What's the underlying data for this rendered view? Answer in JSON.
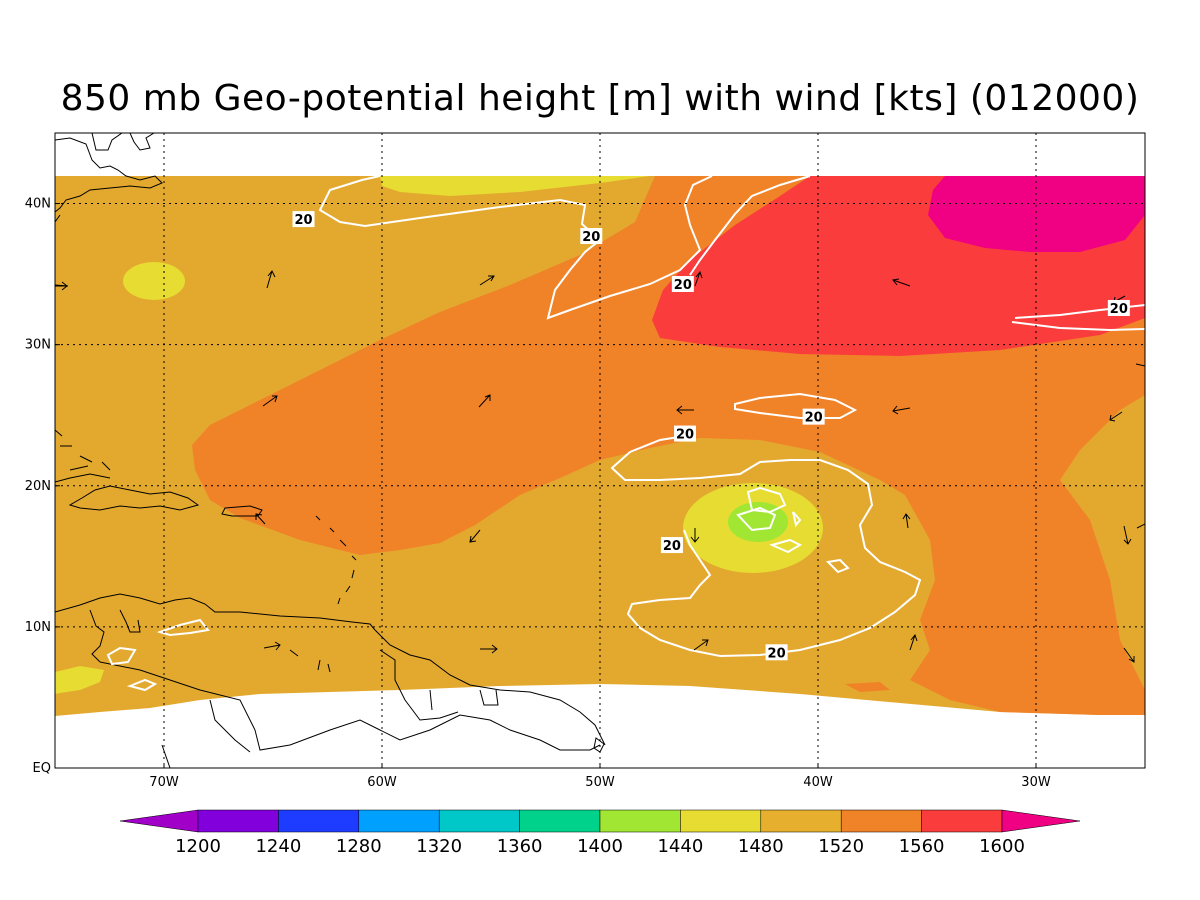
{
  "title": "850 mb Geo-potential height [m] with wind [kts] (012000)",
  "map": {
    "lon_range": [
      -75,
      -25
    ],
    "lat_range": [
      0,
      45
    ],
    "data_lat_max": 42,
    "lat_ticks": [
      {
        "value": 40,
        "label": "40N"
      },
      {
        "value": 30,
        "label": "30N"
      },
      {
        "value": 20,
        "label": "20N"
      },
      {
        "value": 10,
        "label": "10N"
      },
      {
        "value": 0,
        "label": "EQ"
      }
    ],
    "lon_ticks": [
      {
        "value": -70,
        "label": "70W"
      },
      {
        "value": -60,
        "label": "60W"
      },
      {
        "value": -50,
        "label": "50W"
      },
      {
        "value": -40,
        "label": "40W"
      },
      {
        "value": -30,
        "label": "30W"
      }
    ],
    "gridlines": "dotted",
    "colors": {
      "bg": "#e3a92f",
      "c1440": "#a0e632",
      "c1480": "#e6dc32",
      "c1520": "#e3a92f",
      "c1560": "#f08228",
      "c1600": "#fa3c3c",
      "c_gt1600": "#f00082",
      "coast": "#000000",
      "isotach": "#ffffff"
    }
  },
  "wind_isotach_labels": [
    {
      "text": "20",
      "lon": -63.6,
      "lat": 38.9
    },
    {
      "text": "20",
      "lon": -50.4,
      "lat": 37.7
    },
    {
      "text": "20",
      "lon": -46.2,
      "lat": 34.3
    },
    {
      "text": "20",
      "lon": -26.2,
      "lat": 32.6
    },
    {
      "text": "20",
      "lon": -40.2,
      "lat": 24.9
    },
    {
      "text": "20",
      "lon": -46.1,
      "lat": 23.7
    },
    {
      "text": "20",
      "lon": -46.7,
      "lat": 15.8
    },
    {
      "text": "20",
      "lon": -41.9,
      "lat": 8.2
    }
  ],
  "colorbar": {
    "levels": [
      "1200",
      "1240",
      "1280",
      "1320",
      "1360",
      "1400",
      "1440",
      "1480",
      "1520",
      "1560",
      "1600"
    ],
    "colors": [
      "#a000c8",
      "#8200dc",
      "#1e3cff",
      "#00a0ff",
      "#00c8c8",
      "#00d28c",
      "#a0e632",
      "#e6dc32",
      "#e6af2d",
      "#f08228",
      "#fa3c3c",
      "#f00082"
    ]
  }
}
